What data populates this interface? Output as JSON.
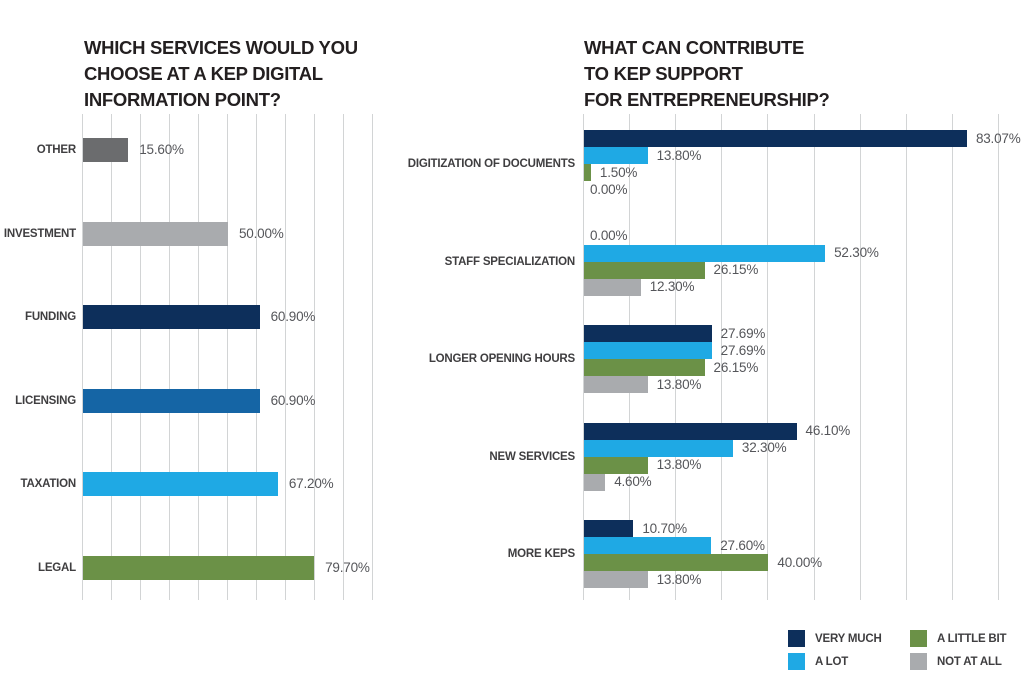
{
  "page": {
    "background": "#ffffff"
  },
  "colors": {
    "very_much": "#0d2f5b",
    "a_lot": "#1fa9e4",
    "a_little_bit": "#6b9147",
    "not_at_all": "#a9abae",
    "dark_gray_bar": "#6b6c6e",
    "medium_blue_bar": "#1565a5",
    "gridline": "#d2d4d5",
    "title_text": "#231f20",
    "label_text": "#3f3e40",
    "value_text": "#55565a"
  },
  "chart_data": [
    {
      "type": "bar",
      "orientation": "horizontal",
      "title": "WHICH SERVICES WOULD YOU CHOOSE AT A KEP DIGITAL INFORMATION POINT?",
      "title_lines": [
        "WHICH SERVICES WOULD YOU",
        "CHOOSE AT A KEP DIGITAL",
        "INFORMATION POINT?"
      ],
      "categories": [
        "OTHER",
        "INVESTMENT",
        "FUNDING",
        "LICENSING",
        "TAXATION",
        "LEGAL"
      ],
      "values": [
        15.6,
        50.0,
        60.9,
        60.9,
        67.2,
        79.7
      ],
      "value_labels": [
        "15.60%",
        "50.00%",
        "60.90%",
        "60.90%",
        "67.20%",
        "79.70%"
      ],
      "bar_colors": [
        "#6b6c6e",
        "#a9abae",
        "#0d2f5b",
        "#1565a5",
        "#1fa9e4",
        "#6b9147"
      ],
      "xlabel": "",
      "ylabel": "",
      "xlim": [
        0,
        100
      ],
      "gridline_step_percent": 10,
      "grid": true,
      "legend_position": "none"
    },
    {
      "type": "bar",
      "orientation": "horizontal",
      "grouped": true,
      "title": "WHAT CAN CONTRIBUTE TO KEP SUPPORT FOR ENTREPRENEURSHIP?",
      "title_lines": [
        "WHAT CAN CONTRIBUTE",
        "TO KEP SUPPORT",
        "FOR ENTREPRENEURSHIP?"
      ],
      "categories": [
        "DIGITIZATION OF DOCUMENTS",
        "STAFF SPECIALIZATION",
        "LONGER OPENING HOURS",
        "NEW SERVICES",
        "MORE KEPS"
      ],
      "series": [
        {
          "name": "VERY MUCH",
          "color": "#0d2f5b",
          "values": [
            83.07,
            0.0,
            27.69,
            46.1,
            10.7
          ],
          "value_labels": [
            "83.07%",
            "0.00%",
            "27.69%",
            "46.10%",
            "10.70%"
          ]
        },
        {
          "name": "A LOT",
          "color": "#1fa9e4",
          "values": [
            13.8,
            52.3,
            27.69,
            32.3,
            27.6
          ],
          "value_labels": [
            "13.80%",
            "52.30%",
            "27.69%",
            "32.30%",
            "27.60%"
          ]
        },
        {
          "name": "A LITTLE BIT",
          "color": "#6b9147",
          "values": [
            1.5,
            26.15,
            26.15,
            13.8,
            40.0
          ],
          "value_labels": [
            "1.50%",
            "26.15%",
            "26.15%",
            "13.80%",
            "40.00%"
          ]
        },
        {
          "name": "NOT AT ALL",
          "color": "#a9abae",
          "values": [
            0.0,
            12.3,
            13.8,
            4.6,
            13.8
          ],
          "value_labels": [
            "0.00%",
            "12.30%",
            "13.80%",
            "4.60%",
            "13.80%"
          ]
        }
      ],
      "xlabel": "",
      "ylabel": "",
      "xlim": [
        0,
        100
      ],
      "gridline_step_percent": 10,
      "grid": true,
      "legend_position": "bottom-right"
    }
  ],
  "legend": {
    "items": [
      {
        "label": "VERY MUCH",
        "color": "#0d2f5b"
      },
      {
        "label": "A LOT",
        "color": "#1fa9e4"
      },
      {
        "label": "A LITTLE BIT",
        "color": "#6b9147"
      },
      {
        "label": "NOT AT ALL",
        "color": "#a9abae"
      }
    ]
  }
}
